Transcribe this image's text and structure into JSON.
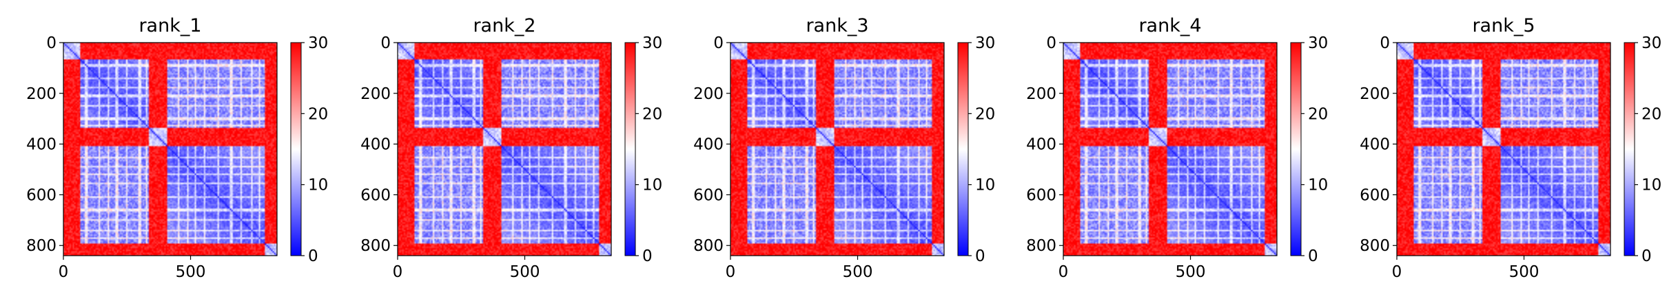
{
  "chart_data": {
    "type": "heatmap",
    "colormap": "bwr",
    "color_range": [
      0,
      30
    ],
    "colorbar_ticks": [
      0,
      10,
      20,
      30
    ],
    "x_ticks": [
      0,
      500
    ],
    "y_ticks": [
      0,
      200,
      400,
      600,
      800
    ],
    "xlim": [
      0,
      840
    ],
    "ylim": [
      840,
      0
    ],
    "matrix_description_blocks": [
      {
        "start": 0,
        "end": 65
      },
      {
        "start": 65,
        "end": 335
      },
      {
        "start": 335,
        "end": 410
      },
      {
        "start": 410,
        "end": 790
      },
      {
        "start": 790,
        "end": 840
      }
    ],
    "panels": [
      {
        "title": "rank_1"
      },
      {
        "title": "rank_2"
      },
      {
        "title": "rank_3"
      },
      {
        "title": "rank_4"
      },
      {
        "title": "rank_5"
      }
    ]
  }
}
